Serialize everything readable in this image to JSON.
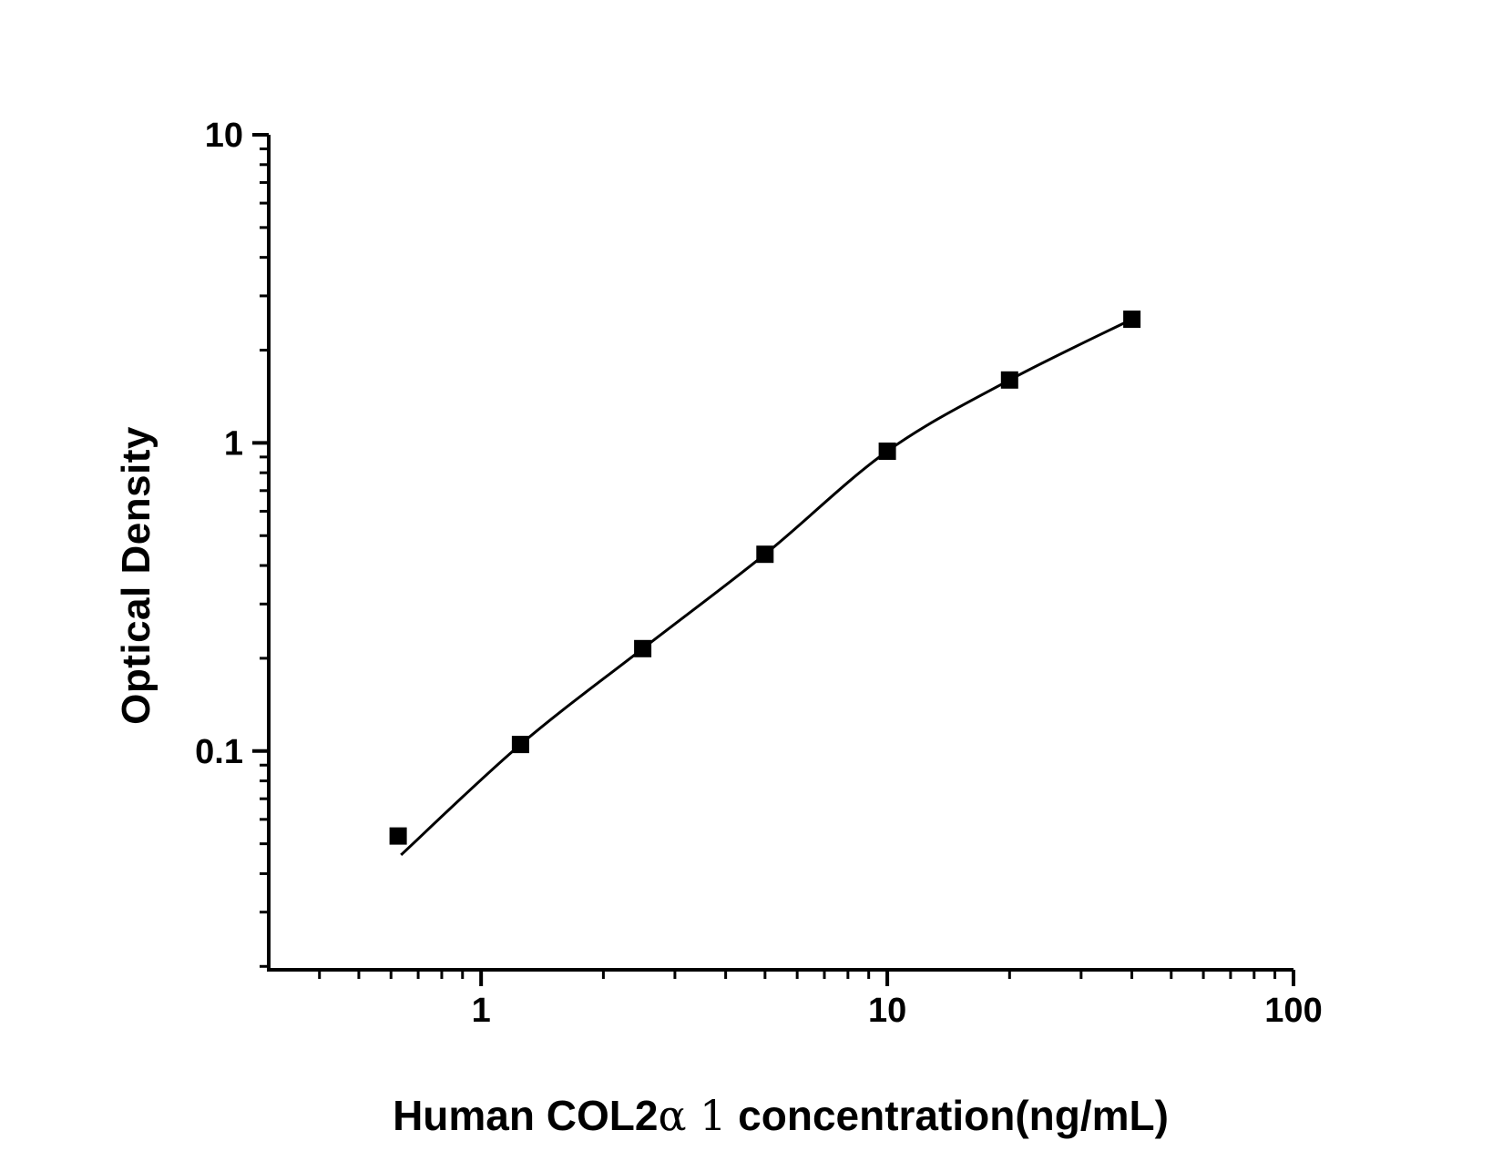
{
  "figure": {
    "background": "#ffffff",
    "ink_color": "#000000"
  },
  "chart_data": {
    "type": "scatter",
    "subtype": "log-log standard curve with fitted line",
    "title": "",
    "legend": "none",
    "grid": "off",
    "x_axis": {
      "label_parts": {
        "prefix_bold": "Human COL2",
        "greek_serif": "α 1",
        "suffix_bold": " concentration(ng/mL)"
      },
      "scale": "log",
      "range": [
        0.3,
        100
      ],
      "major_ticks": [
        {
          "value": 1,
          "label": "1"
        },
        {
          "value": 10,
          "label": "10"
        },
        {
          "value": 100,
          "label": "100"
        }
      ]
    },
    "y_axis": {
      "label": "Optical Density",
      "scale": "log",
      "range": [
        0.0195,
        10
      ],
      "major_ticks": [
        {
          "value": 0.1,
          "label": "0.1"
        },
        {
          "value": 1,
          "label": "1"
        },
        {
          "value": 10,
          "label": "10"
        }
      ]
    },
    "series": [
      {
        "name": "standard-curve",
        "marker": "filled-square",
        "color": "#000000",
        "points": [
          {
            "x": 0.625,
            "od": 0.053
          },
          {
            "x": 1.25,
            "od": 0.105
          },
          {
            "x": 2.5,
            "od": 0.215
          },
          {
            "x": 5,
            "od": 0.435
          },
          {
            "x": 10,
            "od": 0.94
          },
          {
            "x": 20,
            "od": 1.6
          },
          {
            "x": 40,
            "od": 2.52
          }
        ],
        "curve_start": {
          "x": 0.635,
          "od": 0.046
        }
      }
    ]
  }
}
